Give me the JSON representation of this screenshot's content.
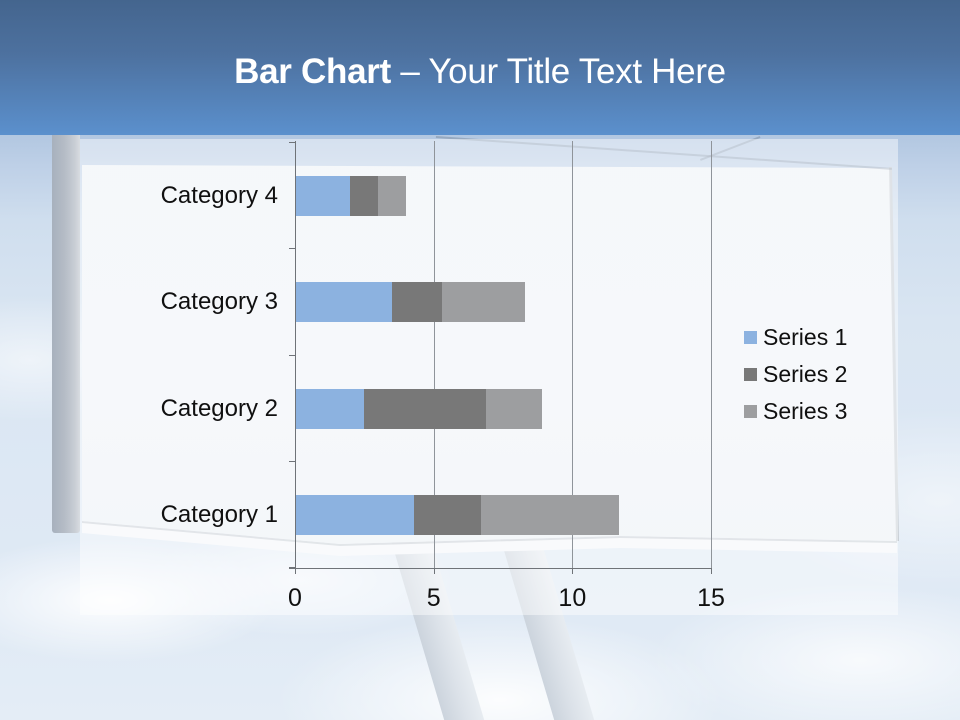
{
  "title": {
    "emphasis": "Bar Chart",
    "rest": " – Your Title Text Here"
  },
  "chart_data": {
    "type": "bar",
    "orientation": "horizontal",
    "stacked": true,
    "title": "Bar Chart – Your Title Text Here",
    "categories": [
      "Category 1",
      "Category 2",
      "Category 3",
      "Category 4"
    ],
    "series": [
      {
        "name": "Series 1",
        "color": "#8cb2e0",
        "values": [
          4.3,
          2.5,
          3.5,
          2
        ]
      },
      {
        "name": "Series 2",
        "color": "#787878",
        "values": [
          2.4,
          4.4,
          1.8,
          1
        ]
      },
      {
        "name": "Series 3",
        "color": "#9d9ea0",
        "values": [
          5,
          2,
          3,
          1
        ]
      }
    ],
    "xlabel": "",
    "ylabel": "",
    "x_axis": {
      "min": 0,
      "max": 15,
      "ticks": [
        0,
        5,
        10,
        15
      ]
    },
    "grid": true,
    "legend_position": "right-middle"
  },
  "colors": {
    "header_top": "#44658e",
    "header_bottom": "#5b90cd",
    "title_text": "#ffffff",
    "axis": "#6f7378",
    "gridline": "#8f949a",
    "label_text": "#101010"
  }
}
